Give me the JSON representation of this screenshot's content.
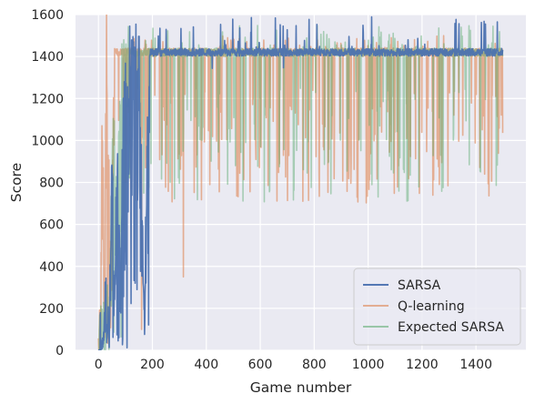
{
  "chart_data": {
    "type": "line",
    "xlabel": "Game number",
    "ylabel": "Score",
    "xlim": [
      -85,
      1585
    ],
    "ylim": [
      0,
      1600
    ],
    "xticks": [
      0,
      200,
      400,
      600,
      800,
      1000,
      1200,
      1400
    ],
    "yticks": [
      0,
      200,
      400,
      600,
      800,
      1000,
      1200,
      1400,
      1600
    ],
    "grid": true,
    "legend_position": "bottom-right",
    "n_games": 1500,
    "baseline": 1420,
    "series": [
      {
        "name": "SARSA",
        "color": "#4c72b0",
        "opacity": 0.95,
        "learning_end": 190,
        "learning_points": [
          [
            0,
            0
          ],
          [
            15,
            10
          ],
          [
            25,
            220
          ],
          [
            40,
            40
          ],
          [
            50,
            820
          ],
          [
            60,
            120
          ],
          [
            70,
            1050
          ],
          [
            80,
            260
          ],
          [
            95,
            1180
          ],
          [
            110,
            1350
          ],
          [
            150,
            1380
          ],
          [
            170,
            150
          ],
          [
            190,
            1420
          ]
        ],
        "dip_rate": 0.004,
        "dip_min": 1200,
        "dip_max": 1380,
        "spike_rate": 0.04,
        "spike_max": 1590,
        "noise": 18
      },
      {
        "name": "Q-learning",
        "color": "#dd8452",
        "opacity": 0.6,
        "learning_end": 60,
        "learning_points": [
          [
            0,
            0
          ],
          [
            8,
            40
          ],
          [
            15,
            1250
          ],
          [
            22,
            100
          ],
          [
            30,
            1450
          ],
          [
            45,
            400
          ],
          [
            60,
            1420
          ]
        ],
        "dip_rate": 0.12,
        "dip_min": 700,
        "dip_max": 1250,
        "spike_rate": 0.05,
        "spike_max": 1500,
        "noise": 20,
        "special_dips": [
          [
            315,
            350
          ],
          [
            160,
            100
          ]
        ]
      },
      {
        "name": "Expected SARSA",
        "color": "#55a868",
        "opacity": 0.45,
        "learning_end": 100,
        "learning_points": [
          [
            0,
            0
          ],
          [
            20,
            60
          ],
          [
            40,
            250
          ],
          [
            55,
            1050
          ],
          [
            70,
            600
          ],
          [
            85,
            1300
          ],
          [
            100,
            1420
          ]
        ],
        "dip_rate": 0.08,
        "dip_min": 700,
        "dip_max": 1250,
        "spike_rate": 0.05,
        "spike_max": 1550,
        "noise": 20
      }
    ]
  }
}
